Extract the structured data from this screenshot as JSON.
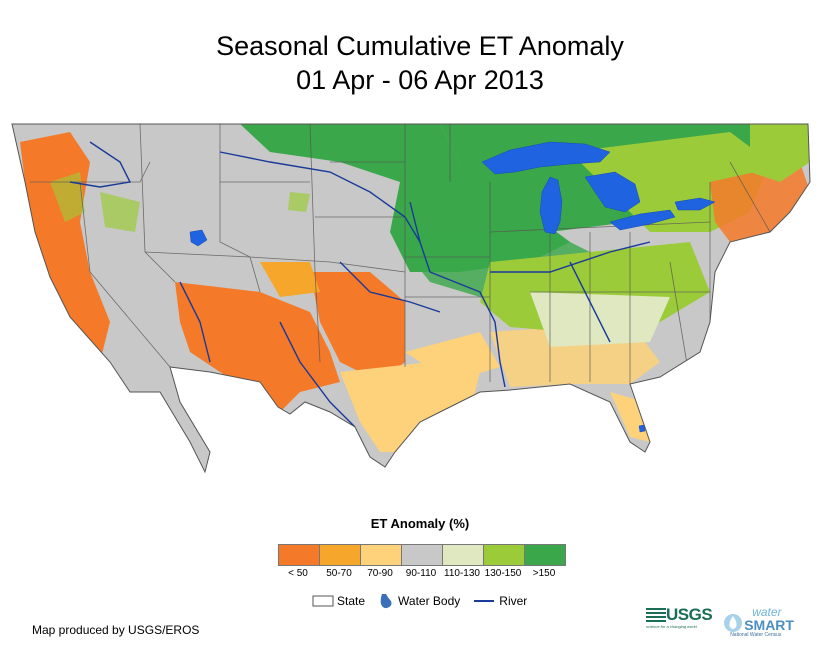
{
  "title": {
    "line1": "Seasonal Cumulative ET Anomaly",
    "line2": "01 Apr - 06 Apr 2013"
  },
  "legend": {
    "title": "ET Anomaly (%)",
    "classes": [
      {
        "label": "< 50",
        "color": "#f47a2a"
      },
      {
        "label": "50-70",
        "color": "#f6a62a"
      },
      {
        "label": "70-90",
        "color": "#fdd27a"
      },
      {
        "label": "90-110",
        "color": "#c8c8c8"
      },
      {
        "label": "110-130",
        "color": "#dfe8c0"
      },
      {
        "label": "130-150",
        "color": "#9ccb3a"
      },
      {
        "label": ">150",
        "color": "#3aa84a"
      }
    ],
    "symbols": {
      "state": "State",
      "water_body": "Water Body",
      "river": "River"
    }
  },
  "colors": {
    "water": "#1f63e0",
    "river": "#1a3a9a",
    "state_border": "#555555"
  },
  "footer": {
    "credit": "Map produced by USGS/EROS"
  },
  "logos": {
    "usgs": "USGS",
    "usgs_tagline": "science for a changing world",
    "watersmart_top": "water",
    "watersmart_main": "SMART",
    "watersmart_sub": "National Water Census"
  }
}
